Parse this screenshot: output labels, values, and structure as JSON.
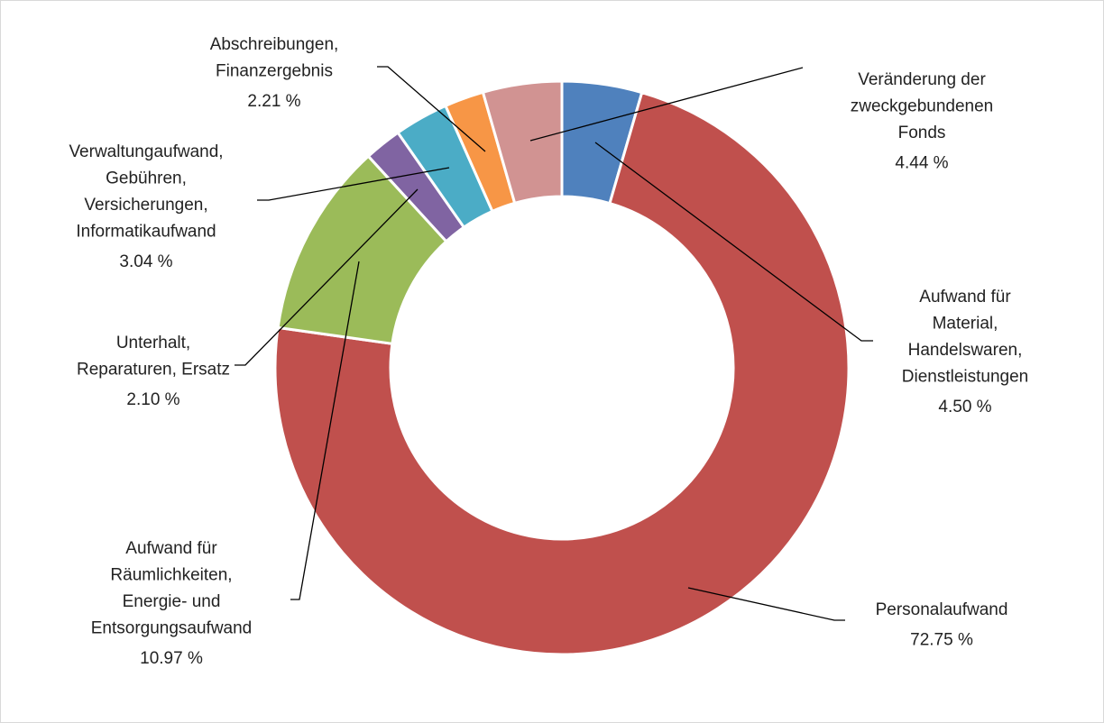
{
  "chart_data": {
    "type": "donut",
    "categories": [
      "Aufwand für\nMaterial,\nHandelswaren,\nDienstleistungen",
      "Personalaufwand",
      "Aufwand für\nRäumlichkeiten,\nEnergie- und\nEntsorgungsaufwand",
      "Unterhalt,\nReparaturen, Ersatz",
      "Verwaltungaufwand,\nGebühren,\nVersicherungen,\nInformatikaufwand",
      "Abschreibungen,\nFinanzergebnis",
      "Veränderung der\nzweckgebundenen\nFonds"
    ],
    "values": [
      4.5,
      72.75,
      10.97,
      2.1,
      3.04,
      2.21,
      4.44
    ],
    "value_labels": [
      "4.50 %",
      "72.75 %",
      "10.97 %",
      "2.10 %",
      "3.04 %",
      "2.21 %",
      "4.44 %"
    ],
    "colors": [
      "#4f81bd",
      "#c0504d",
      "#9bbb59",
      "#8064a2",
      "#4bacc6",
      "#f79646",
      "#d19392"
    ]
  }
}
